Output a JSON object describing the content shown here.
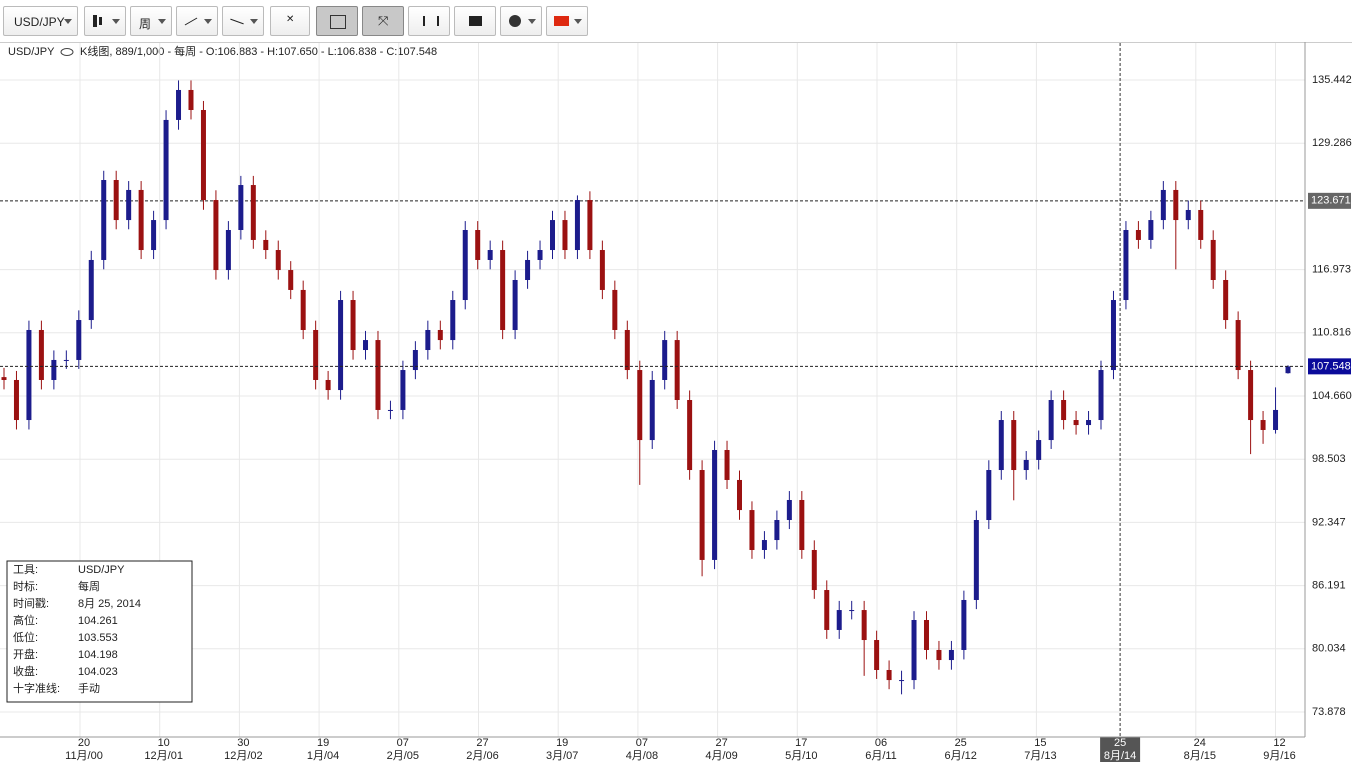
{
  "toolbar": {
    "symbol": "USD/JPY",
    "period": "周"
  },
  "chart_data": {
    "type": "candlestick",
    "title": "USD/JPY",
    "subtitle": "K线图, 889/1,000 - 每周 - O:106.883 - H:107.650 - L:106.838 - C:107.548",
    "up_color": "#1c1c8c",
    "down_color": "#9b1111",
    "grid": true,
    "open": [
      106.5,
      106.22,
      102.32,
      111.09,
      106.22,
      108.17,
      108.17,
      112.06,
      117.91,
      125.7,
      121.8,
      124.73,
      118.88,
      121.8,
      131.55,
      134.47,
      132.52,
      123.75,
      116.93,
      120.83,
      125.21,
      119.86,
      118.88,
      116.93,
      114.99,
      111.09,
      106.22,
      105.24,
      114.01,
      109.14,
      110.11,
      103.3,
      103.3,
      107.19,
      109.14,
      111.09,
      110.11,
      114.01,
      120.83,
      117.91,
      118.88,
      111.09,
      115.96,
      117.91,
      118.88,
      121.8,
      118.88,
      123.75,
      118.88,
      114.99,
      111.09,
      107.19,
      100.37,
      106.22,
      110.11,
      104.27,
      97.45,
      88.69,
      99.4,
      96.48,
      93.55,
      89.66,
      90.63,
      92.58,
      94.53,
      89.66,
      85.76,
      81.87,
      83.81,
      83.81,
      80.89,
      77.97,
      76.99,
      76.99,
      82.84,
      79.92,
      78.94,
      79.92,
      84.79,
      92.58,
      97.45,
      102.32,
      97.45,
      98.43,
      100.37,
      104.27,
      102.32,
      101.83,
      102.32,
      107.19,
      114.01,
      120.83,
      119.86,
      121.8,
      124.73,
      121.8,
      122.78,
      119.86,
      115.96,
      112.06,
      107.19,
      102.32,
      101.35,
      106.883
    ],
    "high": [
      107.4,
      107.1,
      112.0,
      112.0,
      109.1,
      109.1,
      113.0,
      118.8,
      126.6,
      126.6,
      125.6,
      125.6,
      122.7,
      132.5,
      135.4,
      135.4,
      133.4,
      124.7,
      121.7,
      126.1,
      126.1,
      120.8,
      119.8,
      117.8,
      115.9,
      112.0,
      107.1,
      114.9,
      114.9,
      111.0,
      111.0,
      104.2,
      108.1,
      110.0,
      112.0,
      112.0,
      114.9,
      121.7,
      121.7,
      119.8,
      119.8,
      116.9,
      118.8,
      119.8,
      122.7,
      122.7,
      124.2,
      124.6,
      119.8,
      115.9,
      112.0,
      108.1,
      107.1,
      111.0,
      111.0,
      105.2,
      98.4,
      100.3,
      100.3,
      97.4,
      94.4,
      91.5,
      93.5,
      95.4,
      95.4,
      90.6,
      86.7,
      84.7,
      84.7,
      84.7,
      81.8,
      78.9,
      77.9,
      83.7,
      83.7,
      80.8,
      80.8,
      85.7,
      93.5,
      98.4,
      103.2,
      103.2,
      99.3,
      101.3,
      105.2,
      105.2,
      103.2,
      103.2,
      108.1,
      114.9,
      121.7,
      121.7,
      122.7,
      125.6,
      125.6,
      123.7,
      123.7,
      120.8,
      116.9,
      112.9,
      108.1,
      103.2,
      105.5,
      107.65
    ],
    "low": [
      105.3,
      101.4,
      101.4,
      105.3,
      105.3,
      107.3,
      107.3,
      111.2,
      117.0,
      120.9,
      120.9,
      118.0,
      118.0,
      120.9,
      130.6,
      131.6,
      122.8,
      116.0,
      116.0,
      119.9,
      119.0,
      118.0,
      116.0,
      114.1,
      110.2,
      105.3,
      104.3,
      104.3,
      108.2,
      108.2,
      102.4,
      102.4,
      102.4,
      106.3,
      108.2,
      109.2,
      109.2,
      113.1,
      117.0,
      117.0,
      110.2,
      110.2,
      115.1,
      117.0,
      118.0,
      118.0,
      118.0,
      118.0,
      114.1,
      110.2,
      106.3,
      96.0,
      99.5,
      105.3,
      103.4,
      96.5,
      87.1,
      87.8,
      95.6,
      92.6,
      88.8,
      88.8,
      89.7,
      91.7,
      88.8,
      84.9,
      81.0,
      81.0,
      82.9,
      77.4,
      77.1,
      76.1,
      75.6,
      76.1,
      79.0,
      78.0,
      78.0,
      79.0,
      83.9,
      91.7,
      96.5,
      94.5,
      96.5,
      97.5,
      99.5,
      101.4,
      100.9,
      100.9,
      101.4,
      106.3,
      113.1,
      119.0,
      119.0,
      120.9,
      117.0,
      120.9,
      119.0,
      115.1,
      111.2,
      106.3,
      99.0,
      100.0,
      101.0,
      106.838
    ],
    "close": [
      106.22,
      102.32,
      111.09,
      106.22,
      108.17,
      108.17,
      112.06,
      117.91,
      125.7,
      121.8,
      124.73,
      118.88,
      121.8,
      131.55,
      134.47,
      132.52,
      123.75,
      116.93,
      120.83,
      125.21,
      119.86,
      118.88,
      116.93,
      114.99,
      111.09,
      106.22,
      105.24,
      114.01,
      109.14,
      110.11,
      103.3,
      103.3,
      107.19,
      109.14,
      111.09,
      110.11,
      114.01,
      120.83,
      117.91,
      118.88,
      111.09,
      115.96,
      117.91,
      118.88,
      121.8,
      118.88,
      123.75,
      118.88,
      114.99,
      111.09,
      107.19,
      100.37,
      106.22,
      110.11,
      104.27,
      97.45,
      88.69,
      99.4,
      96.48,
      93.55,
      89.66,
      90.63,
      92.58,
      94.53,
      89.66,
      85.76,
      81.87,
      83.81,
      83.81,
      80.89,
      77.97,
      76.99,
      76.99,
      82.84,
      79.92,
      78.94,
      79.92,
      84.79,
      92.58,
      97.45,
      102.32,
      97.45,
      98.43,
      100.37,
      104.27,
      102.32,
      101.83,
      102.32,
      107.19,
      114.01,
      120.83,
      119.86,
      121.8,
      124.73,
      121.8,
      122.78,
      119.86,
      115.96,
      112.06,
      107.19,
      102.32,
      101.35,
      103.3,
      107.548
    ],
    "ylim": [
      71.443,
      139.046
    ],
    "yticks": [
      135.442,
      129.286,
      116.973,
      110.816,
      {
        "value": 104.66,
        "label": "104.660"
      },
      98.503,
      92.347,
      86.191,
      80.034,
      73.878
    ],
    "hline": 123.671,
    "xticks": [
      {
        "day": "20",
        "month": "11月/00"
      },
      {
        "day": "10",
        "month": "12月/01"
      },
      {
        "day": "30",
        "month": "12月/02"
      },
      {
        "day": "19",
        "month": "1月/04"
      },
      {
        "day": "07",
        "month": "2月/05"
      },
      {
        "day": "27",
        "month": "2月/06"
      },
      {
        "day": "19",
        "month": "3月/07"
      },
      {
        "day": "07",
        "month": "4月/08"
      },
      {
        "day": "27",
        "month": "4月/09"
      },
      {
        "day": "17",
        "month": "5月/10"
      },
      {
        "day": "06",
        "month": "6月/11"
      },
      {
        "day": "25",
        "month": "6月/12"
      },
      {
        "day": "15",
        "month": "7月/13"
      },
      {
        "day": "25",
        "month": "8月/14"
      },
      {
        "day": "24",
        "month": "8月/15"
      },
      {
        "day": "12",
        "month": "9月/16"
      }
    ],
    "crosshair_index": 13
  },
  "info_box": {
    "rows": [
      [
        "工具:",
        "USD/JPY"
      ],
      [
        "时标:",
        "每周"
      ],
      [
        "时间戳:",
        "8月 25, 2014"
      ],
      [
        "高位:",
        "104.261"
      ],
      [
        "低位:",
        "103.553"
      ],
      [
        "开盘:",
        "104.198"
      ],
      [
        "收盘:",
        "104.023"
      ],
      [
        "十字准线:",
        "手动"
      ]
    ]
  }
}
